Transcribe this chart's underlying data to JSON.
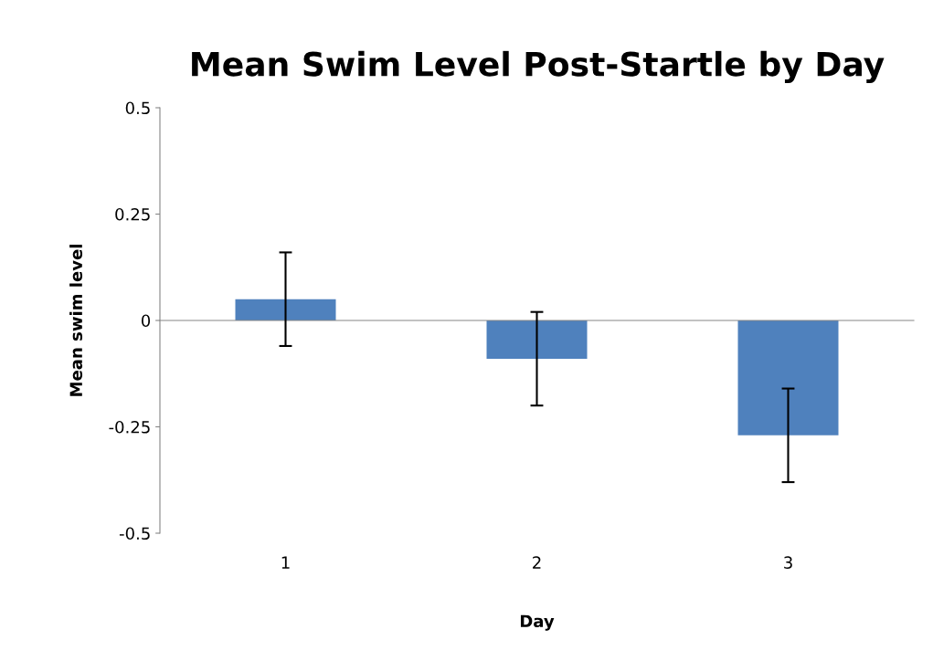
{
  "chart_data": {
    "type": "bar",
    "title": "Mean Swim Level Post-Startle by Day",
    "xlabel": "Day",
    "ylabel": "Mean swim level",
    "categories": [
      "1",
      "2",
      "3"
    ],
    "values": [
      0.05,
      -0.09,
      -0.27
    ],
    "errors": [
      0.11,
      0.11,
      0.11
    ],
    "color": "#4f81bd",
    "ylim": [
      -0.5,
      0.5
    ],
    "yticks": [
      {
        "value": -0.5,
        "label": "-0.5"
      },
      {
        "value": -0.25,
        "label": "-0.25"
      },
      0,
      0.25,
      0.5
    ],
    "legend": false
  }
}
